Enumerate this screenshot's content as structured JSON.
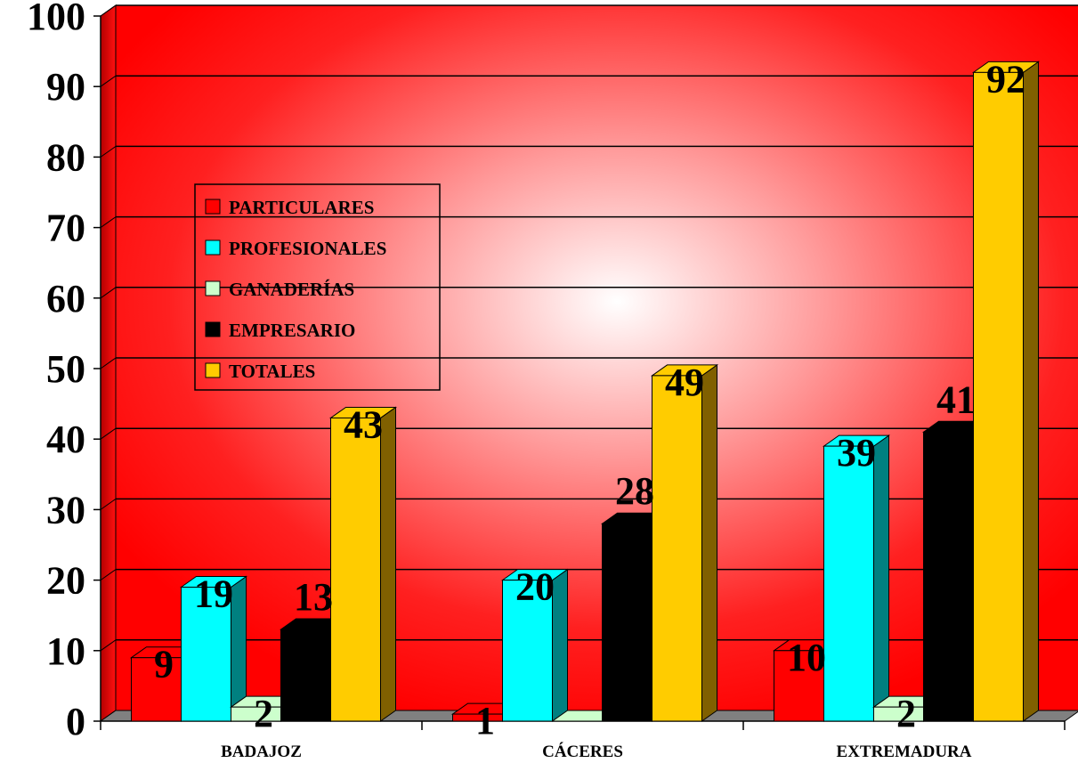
{
  "chart_data": {
    "type": "bar",
    "categories": [
      "BADAJOZ",
      "CÁCERES",
      "EXTREMADURA"
    ],
    "series": [
      {
        "name": "PARTICULARES",
        "values": [
          9,
          1,
          10
        ],
        "color": "#ff0000",
        "side_color": "#800000"
      },
      {
        "name": "PROFESIONALES",
        "values": [
          19,
          20,
          39
        ],
        "color": "#00ffff",
        "side_color": "#008080"
      },
      {
        "name": "GANADERÍAS",
        "values": [
          2,
          0,
          2
        ],
        "color": "#ccffcc",
        "side_color": "#66a366"
      },
      {
        "name": "EMPRESARIO",
        "values": [
          13,
          28,
          41
        ],
        "color": "#000000",
        "side_color": "#000000"
      },
      {
        "name": "TOTALES",
        "values": [
          43,
          49,
          92
        ],
        "color": "#ffcc00",
        "side_color": "#806000"
      }
    ],
    "data_labels": [
      [
        "9",
        "1",
        "10"
      ],
      [
        "19",
        "20",
        "39"
      ],
      [
        "2",
        "",
        "2"
      ],
      [
        "13",
        "28",
        "41"
      ],
      [
        "43",
        "49",
        "92"
      ]
    ],
    "y_ticks": [
      "0",
      "10",
      "20",
      "30",
      "40",
      "50",
      "60",
      "70",
      "80",
      "90",
      "100"
    ],
    "ylim": [
      0,
      100
    ],
    "grid": true,
    "legend_position": "left",
    "title": "",
    "xlabel": "",
    "ylabel": ""
  }
}
